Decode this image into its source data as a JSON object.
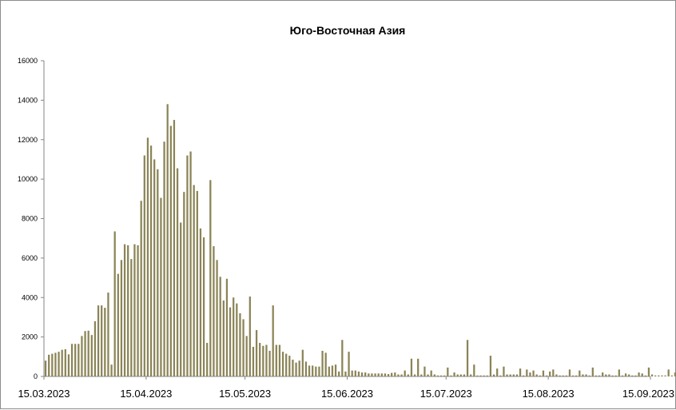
{
  "chart_data": {
    "type": "bar",
    "title": "Юго-Восточная Азия",
    "xlabel": "",
    "ylabel": "",
    "ylim": [
      0,
      16000
    ],
    "yticks": [
      0,
      2000,
      4000,
      6000,
      8000,
      10000,
      12000,
      14000,
      16000
    ],
    "ytick_labels": [
      "0",
      "2000",
      "4000",
      "6000",
      "8000",
      "10000",
      "12000",
      "14000",
      "16000"
    ],
    "xtick_labels": [
      "15.03.2023",
      "15.04.2023",
      "15.05.2023",
      "15.06.2023",
      "15.07.2023",
      "15.08.2023",
      "15.09.2023"
    ],
    "start_date": "15.03.2023",
    "end_date": "15.09.2023",
    "grid": false,
    "legend": "none",
    "bar_color": "#8b8457",
    "values": [
      800,
      1100,
      1150,
      1200,
      1250,
      1350,
      1380,
      1120,
      1650,
      1650,
      1650,
      2050,
      2300,
      2320,
      2100,
      2800,
      3600,
      3600,
      3480,
      4250,
      600,
      7350,
      5200,
      5900,
      6700,
      6650,
      5950,
      6700,
      6650,
      8900,
      11200,
      12100,
      11700,
      11000,
      10500,
      9050,
      11900,
      13800,
      12700,
      13000,
      10550,
      7800,
      9350,
      11200,
      11400,
      9700,
      9400,
      7500,
      7050,
      1700,
      9950,
      6600,
      5900,
      5050,
      3850,
      4950,
      3500,
      4000,
      3700,
      3200,
      2900,
      2050,
      4050,
      1500,
      2350,
      1700,
      1550,
      1600,
      1300,
      3600,
      1600,
      1600,
      1250,
      1150,
      1050,
      850,
      700,
      800,
      1350,
      750,
      550,
      550,
      500,
      500,
      1300,
      1200,
      500,
      550,
      600,
      250,
      1850,
      250,
      1250,
      300,
      300,
      250,
      200,
      200,
      150,
      150,
      150,
      150,
      150,
      150,
      120,
      180,
      200,
      100,
      100,
      300,
      100,
      900,
      100,
      900,
      100,
      500,
      100,
      300,
      100,
      50,
      50,
      50,
      450,
      50,
      200,
      100,
      100,
      100,
      1850,
      100,
      600,
      50,
      50,
      50,
      50,
      1050,
      100,
      400,
      50,
      500,
      100,
      100,
      100,
      100,
      400,
      50,
      350,
      200,
      300,
      100,
      50,
      300,
      50,
      250,
      350,
      100,
      50,
      50,
      50,
      350,
      50,
      50,
      300,
      100,
      100,
      50,
      450,
      50,
      50,
      200,
      100,
      100,
      50,
      50,
      350,
      50,
      150,
      100,
      50,
      50,
      200,
      150,
      50,
      450,
      100,
      50,
      50,
      50,
      50,
      350,
      50,
      200,
      300
    ]
  }
}
